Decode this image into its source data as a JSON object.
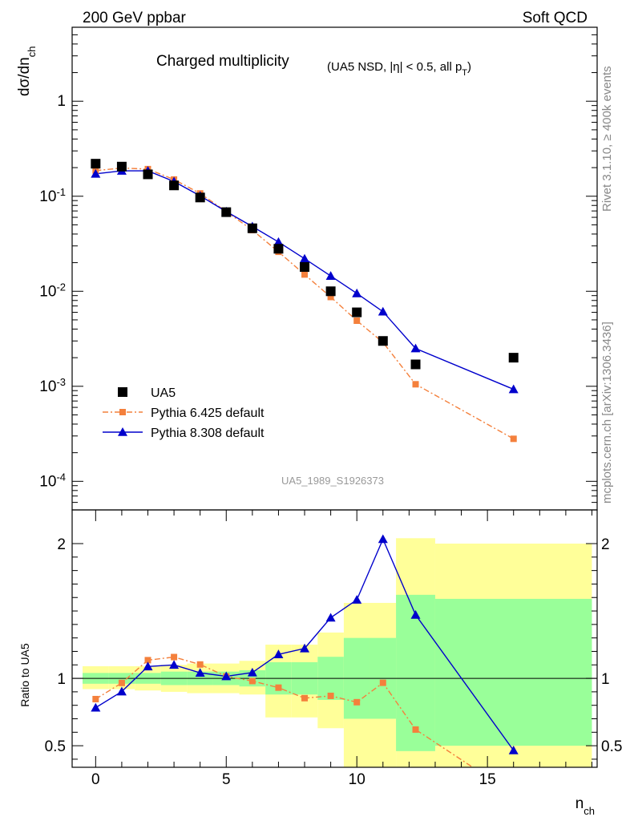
{
  "header": {
    "left_label": "200 GeV ppbar",
    "right_label": "Soft QCD",
    "side_top": "Rivet 3.1.10, ≥ 400k events",
    "side_bottom": "mcplots.cern.ch [arXiv:1306.3436]"
  },
  "chart_data": [
    {
      "type": "scatter",
      "panel": "main",
      "title": "Charged multiplicity",
      "subtitle": "(UA5 NSD, |η| < 0.5, all p_T)",
      "ylabel": "dσ/dn_ch",
      "yscale": "log",
      "ylim": [
        5e-05,
        6
      ],
      "xlim": [
        -0.9,
        19.2
      ],
      "y_tick_labels": [
        "10^-4",
        "10^-3",
        "10^-2",
        "10^-1",
        "1"
      ],
      "watermark": "UA5_1989_S1926373",
      "legend_position": "lower-left",
      "series": [
        {
          "name": "UA5",
          "style": "square-markers",
          "color": "#000000",
          "x": [
            0,
            1,
            2,
            3,
            4,
            5,
            6,
            7,
            8,
            9,
            10,
            11,
            12.25,
            16
          ],
          "y": [
            0.22,
            0.205,
            0.17,
            0.13,
            0.097,
            0.068,
            0.046,
            0.028,
            0.018,
            0.01,
            0.006,
            0.003,
            0.0017,
            0.002
          ]
        },
        {
          "name": "Pythia 6.425 default",
          "style": "dash-dot-line-square-markers",
          "color": "#f4803c",
          "x": [
            0,
            1,
            2,
            3,
            4,
            5,
            6,
            7,
            8,
            9,
            10,
            11,
            12.25,
            16
          ],
          "y": [
            0.186,
            0.198,
            0.193,
            0.15,
            0.107,
            0.069,
            0.044,
            0.026,
            0.015,
            0.0087,
            0.0049,
            0.0029,
            0.00105,
            0.00028
          ]
        },
        {
          "name": "Pythia 8.308 default",
          "style": "solid-line-triangle-markers",
          "color": "#0000cc",
          "x": [
            0,
            1,
            2,
            3,
            4,
            5,
            6,
            7,
            8,
            9,
            10,
            11,
            12.25,
            16
          ],
          "y": [
            0.172,
            0.185,
            0.185,
            0.143,
            0.101,
            0.069,
            0.048,
            0.033,
            0.022,
            0.0145,
            0.0095,
            0.0061,
            0.0025,
            0.00093
          ]
        }
      ]
    },
    {
      "type": "line",
      "panel": "ratio",
      "ylabel": "Ratio to UA5",
      "xlabel": "n_ch",
      "ylim": [
        0.34,
        2.25
      ],
      "xlim": [
        -0.9,
        19.2
      ],
      "x_ticks": [
        0,
        5,
        10,
        15
      ],
      "y_ticks": [
        0.5,
        1,
        2
      ],
      "reference_line": 1,
      "bands": {
        "bins": [
          {
            "lo": -0.5,
            "hi": 0.5,
            "outer": [
              0.92,
              1.09
            ],
            "inner": [
              0.96,
              1.04
            ]
          },
          {
            "lo": 0.5,
            "hi": 1.5,
            "outer": [
              0.92,
              1.09
            ],
            "inner": [
              0.96,
              1.04
            ]
          },
          {
            "lo": 1.5,
            "hi": 2.5,
            "outer": [
              0.91,
              1.09
            ],
            "inner": [
              0.96,
              1.04
            ]
          },
          {
            "lo": 2.5,
            "hi": 3.5,
            "outer": [
              0.9,
              1.1
            ],
            "inner": [
              0.95,
              1.05
            ]
          },
          {
            "lo": 3.5,
            "hi": 4.5,
            "outer": [
              0.89,
              1.11
            ],
            "inner": [
              0.95,
              1.05
            ]
          },
          {
            "lo": 4.5,
            "hi": 5.5,
            "outer": [
              0.89,
              1.11
            ],
            "inner": [
              0.95,
              1.05
            ]
          },
          {
            "lo": 5.5,
            "hi": 6.5,
            "outer": [
              0.88,
              1.13
            ],
            "inner": [
              0.94,
              1.06
            ]
          },
          {
            "lo": 6.5,
            "hi": 7.5,
            "outer": [
              0.71,
              1.25
            ],
            "inner": [
              0.88,
              1.12
            ]
          },
          {
            "lo": 7.5,
            "hi": 8.5,
            "outer": [
              0.71,
              1.25
            ],
            "inner": [
              0.88,
              1.12
            ]
          },
          {
            "lo": 8.5,
            "hi": 9.5,
            "outer": [
              0.63,
              1.34
            ],
            "inner": [
              0.84,
              1.16
            ]
          },
          {
            "lo": 9.5,
            "hi": 10.5,
            "outer": [
              0.34,
              1.56
            ],
            "inner": [
              0.7,
              1.3
            ]
          },
          {
            "lo": 10.5,
            "hi": 11.5,
            "outer": [
              0.34,
              1.56
            ],
            "inner": [
              0.7,
              1.3
            ]
          },
          {
            "lo": 11.5,
            "hi": 13.0,
            "outer": [
              0.34,
              2.04
            ],
            "inner": [
              0.46,
              1.62
            ]
          },
          {
            "lo": 13.0,
            "hi": 19.0,
            "outer": [
              0.34,
              2.0
            ],
            "inner": [
              0.5,
              1.59
            ]
          }
        ],
        "colors": {
          "outer": "#ffff99",
          "inner": "#99ff99"
        }
      },
      "series": [
        {
          "name": "Pythia 6.425 default",
          "color": "#f4803c",
          "x": [
            0,
            1,
            2,
            3,
            4,
            5,
            6,
            7,
            8,
            9,
            10,
            11,
            12.25,
            16
          ],
          "y": [
            0.846,
            0.966,
            1.135,
            1.158,
            1.103,
            1.015,
            0.98,
            0.931,
            0.853,
            0.87,
            0.823,
            0.967,
            0.62,
            0.14
          ]
        },
        {
          "name": "Pythia 8.308 default",
          "color": "#0000cc",
          "x": [
            0,
            1,
            2,
            3,
            4,
            5,
            6,
            7,
            8,
            9,
            10,
            11,
            12.25,
            16
          ],
          "y": [
            0.782,
            0.902,
            1.088,
            1.1,
            1.041,
            1.015,
            1.043,
            1.178,
            1.222,
            1.45,
            1.583,
            2.033,
            1.471,
            0.465
          ]
        }
      ]
    }
  ]
}
